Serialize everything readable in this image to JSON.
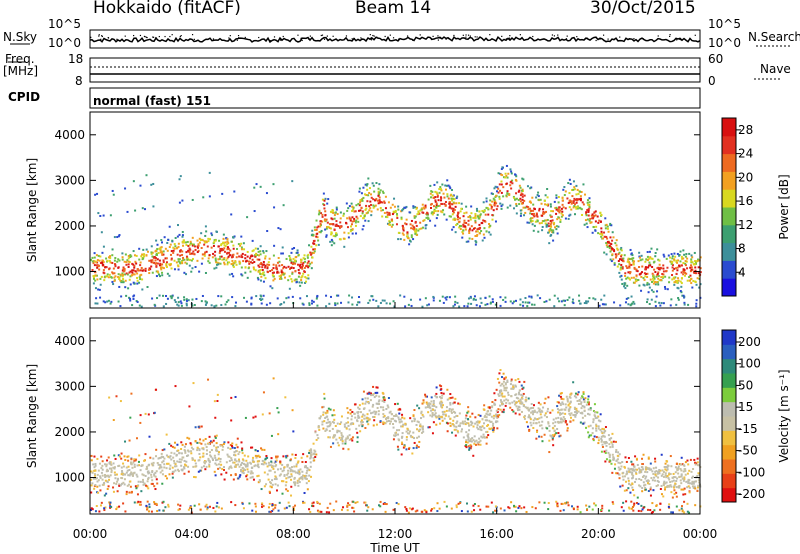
{
  "header": {
    "station": "Hokkaido (fitACF)",
    "beam": "Beam 14",
    "date": "30/Oct/2015"
  },
  "top_panel": {
    "left_label": "N.Sky",
    "right_label": "N.Search",
    "left_ticks": [
      "10^5",
      "10^0"
    ],
    "right_ticks": [
      "10^5",
      "10^0"
    ]
  },
  "freq_panel": {
    "left_label_line1": "Freq.",
    "left_label_line2": "[MHz]",
    "right_label": "Nave",
    "left_ticks": [
      "18",
      "8"
    ],
    "right_ticks": [
      "60",
      "0"
    ]
  },
  "cpid": {
    "label": "CPID",
    "value": "normal (fast) 151"
  },
  "colors": {
    "power": [
      "#1a10e0",
      "#2a4bd0",
      "#3d8f9a",
      "#3c9f70",
      "#6fbf45",
      "#d8d820",
      "#f2a020",
      "#ee6a20",
      "#e23020",
      "#d81010"
    ],
    "velocity": [
      "#2038c8",
      "#2a5fbf",
      "#2e8a7a",
      "#36a050",
      "#7ccc3c",
      "#bdbdb0",
      "#c7c1a4",
      "#f0c040",
      "#f0a020",
      "#ee7020",
      "#e84018",
      "#e01010"
    ]
  },
  "chart_data": [
    {
      "type": "heatmap",
      "name": "Power",
      "ylabel": "Slant Range [km]",
      "yticks": [
        1000,
        2000,
        3000,
        4000
      ],
      "ylim": [
        200,
        4500
      ],
      "xlim": [
        "00:00",
        "24:00"
      ],
      "colorbar_label": "Power [dB]",
      "colorbar_ticks": [
        4,
        8,
        12,
        16,
        20,
        24,
        28
      ],
      "colorbar_range": [
        0,
        30
      ]
    },
    {
      "type": "heatmap",
      "name": "Velocity",
      "ylabel": "Slant Range [km]",
      "yticks": [
        1000,
        2000,
        3000,
        4000
      ],
      "ylim": [
        200,
        4500
      ],
      "xlim": [
        "00:00",
        "24:00"
      ],
      "colorbar_label": "Velocity [m s⁻¹]",
      "colorbar_ticks": [
        200,
        100,
        50,
        15,
        -15,
        -50,
        -100,
        -200
      ]
    }
  ],
  "xaxis": {
    "ticks": [
      "00:00",
      "04:00",
      "08:00",
      "12:00",
      "16:00",
      "20:00",
      "00:00"
    ],
    "label": "Time UT"
  }
}
